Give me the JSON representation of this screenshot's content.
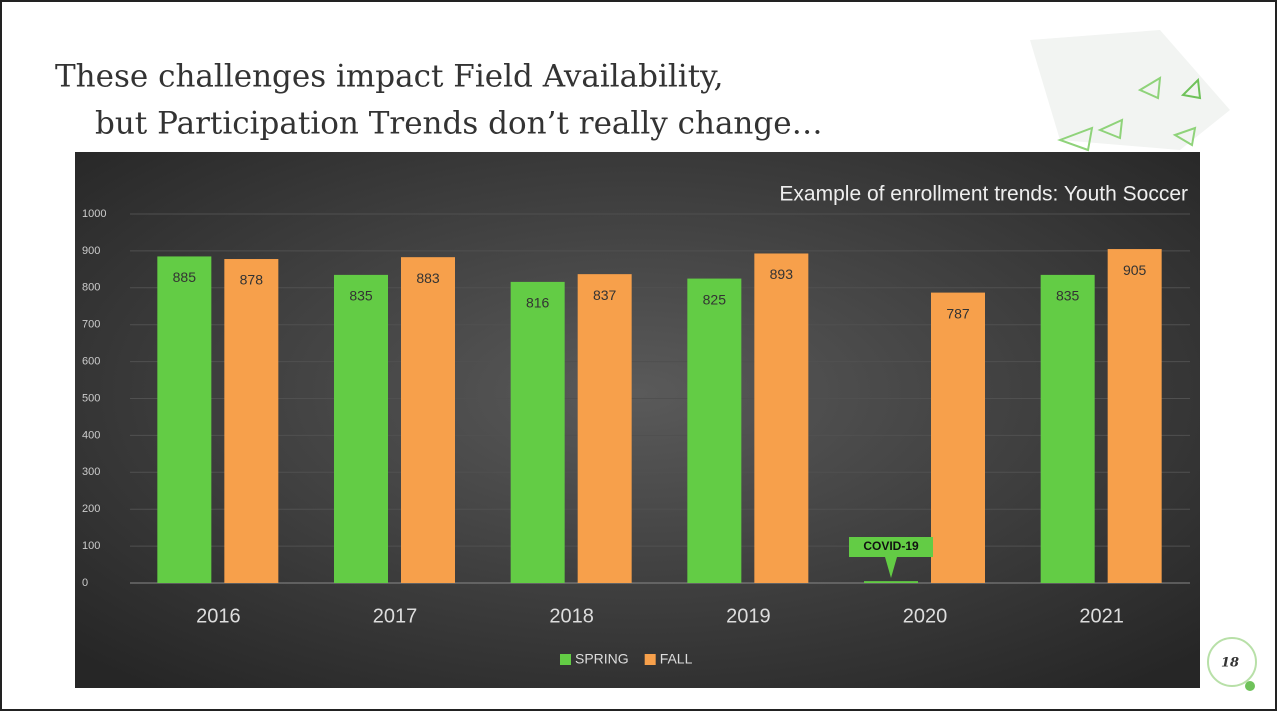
{
  "slide": {
    "title_lines": [
      "These challenges impact Field Availability,",
      "but Participation Trends don’t really change…"
    ],
    "page_number": "18"
  },
  "chart_data": {
    "type": "bar",
    "title": "Example of enrollment trends: Youth Soccer",
    "categories": [
      "2016",
      "2017",
      "2018",
      "2019",
      "2020",
      "2021"
    ],
    "series": [
      {
        "name": "SPRING",
        "color": "#63cc45",
        "values": [
          885,
          835,
          816,
          825,
          5,
          835
        ],
        "value_labels": [
          "885",
          "835",
          "816",
          "825",
          null,
          "835"
        ]
      },
      {
        "name": "FALL",
        "color": "#f7a04b",
        "values": [
          878,
          883,
          837,
          893,
          787,
          905
        ]
      }
    ],
    "annotation": "COVID-19",
    "ylim": [
      0,
      1000
    ],
    "yticks": [
      0,
      100,
      200,
      300,
      400,
      500,
      600,
      700,
      800,
      900,
      1000
    ],
    "grid": true,
    "legend": "bottom"
  }
}
